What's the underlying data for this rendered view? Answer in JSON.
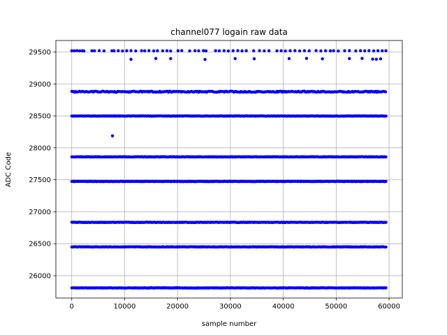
{
  "chart_data": {
    "type": "scatter",
    "title": "channel077 logain raw data",
    "xlabel": "sample number",
    "ylabel": "ADC Code",
    "xlim": [
      -3000,
      62500
    ],
    "ylim": [
      25650,
      29680
    ],
    "xticks": [
      0,
      10000,
      20000,
      30000,
      40000,
      50000,
      60000
    ],
    "yticks": [
      26000,
      26500,
      27000,
      27500,
      28000,
      28500,
      29000,
      29500
    ],
    "grid": true,
    "marker_color": "#0000ff",
    "sample_range": [
      0,
      59500
    ],
    "levels": [
      {
        "value": 25808,
        "pattern": "dense"
      },
      {
        "value": 26450,
        "pattern": "dense"
      },
      {
        "value": 26834,
        "pattern": "dense"
      },
      {
        "value": 27474,
        "pattern": "dense"
      },
      {
        "value": 27859,
        "pattern": "dense"
      },
      {
        "value": 28498,
        "pattern": "dense"
      },
      {
        "value": 28878,
        "pattern": "clustered"
      },
      {
        "value": 29517,
        "pattern": "sparse"
      }
    ],
    "sparse_points": [
      {
        "x": 0,
        "y": 29520
      },
      {
        "x": 500,
        "y": 29518
      },
      {
        "x": 1000,
        "y": 29521
      },
      {
        "x": 1500,
        "y": 29517
      },
      {
        "x": 2000,
        "y": 29519
      },
      {
        "x": 2300,
        "y": 29516
      },
      {
        "x": 3800,
        "y": 29520
      },
      {
        "x": 4300,
        "y": 29518
      },
      {
        "x": 5200,
        "y": 29521
      },
      {
        "x": 6100,
        "y": 29517
      },
      {
        "x": 7600,
        "y": 29519
      },
      {
        "x": 8000,
        "y": 29518
      },
      {
        "x": 8800,
        "y": 29520
      },
      {
        "x": 9600,
        "y": 29516
      },
      {
        "x": 10400,
        "y": 29519
      },
      {
        "x": 11200,
        "y": 29521
      },
      {
        "x": 12100,
        "y": 29517
      },
      {
        "x": 13200,
        "y": 29520
      },
      {
        "x": 13800,
        "y": 29518
      },
      {
        "x": 14600,
        "y": 29521
      },
      {
        "x": 15500,
        "y": 29517
      },
      {
        "x": 16200,
        "y": 29519
      },
      {
        "x": 17200,
        "y": 29518
      },
      {
        "x": 18000,
        "y": 29520
      },
      {
        "x": 18700,
        "y": 29516
      },
      {
        "x": 20100,
        "y": 29519
      },
      {
        "x": 20800,
        "y": 29521
      },
      {
        "x": 22300,
        "y": 29517
      },
      {
        "x": 23300,
        "y": 29520
      },
      {
        "x": 24000,
        "y": 29518
      },
      {
        "x": 24900,
        "y": 29521
      },
      {
        "x": 25400,
        "y": 29517
      },
      {
        "x": 27200,
        "y": 29519
      },
      {
        "x": 27900,
        "y": 29518
      },
      {
        "x": 28800,
        "y": 29520
      },
      {
        "x": 29600,
        "y": 29516
      },
      {
        "x": 30500,
        "y": 29519
      },
      {
        "x": 31400,
        "y": 29521
      },
      {
        "x": 32200,
        "y": 29517
      },
      {
        "x": 33000,
        "y": 29520
      },
      {
        "x": 34400,
        "y": 29518
      },
      {
        "x": 35500,
        "y": 29521
      },
      {
        "x": 36400,
        "y": 29517
      },
      {
        "x": 37300,
        "y": 29519
      },
      {
        "x": 38800,
        "y": 29518
      },
      {
        "x": 39600,
        "y": 29520
      },
      {
        "x": 40400,
        "y": 29516
      },
      {
        "x": 41300,
        "y": 29519
      },
      {
        "x": 42200,
        "y": 29521
      },
      {
        "x": 43100,
        "y": 29517
      },
      {
        "x": 44000,
        "y": 29520
      },
      {
        "x": 44900,
        "y": 29518
      },
      {
        "x": 46200,
        "y": 29521
      },
      {
        "x": 47100,
        "y": 29517
      },
      {
        "x": 48000,
        "y": 29519
      },
      {
        "x": 48900,
        "y": 29518
      },
      {
        "x": 49500,
        "y": 29520
      },
      {
        "x": 50400,
        "y": 29516
      },
      {
        "x": 51600,
        "y": 29519
      },
      {
        "x": 52500,
        "y": 29521
      },
      {
        "x": 53700,
        "y": 29517
      },
      {
        "x": 54600,
        "y": 29520
      },
      {
        "x": 55400,
        "y": 29518
      },
      {
        "x": 56200,
        "y": 29521
      },
      {
        "x": 57100,
        "y": 29517
      },
      {
        "x": 57900,
        "y": 29519
      },
      {
        "x": 58700,
        "y": 29518
      },
      {
        "x": 59400,
        "y": 29520
      },
      {
        "x": 11200,
        "y": 29385
      },
      {
        "x": 15900,
        "y": 29398
      },
      {
        "x": 18700,
        "y": 29396
      },
      {
        "x": 25200,
        "y": 29383
      },
      {
        "x": 30900,
        "y": 29397
      },
      {
        "x": 34500,
        "y": 29394
      },
      {
        "x": 41100,
        "y": 29396
      },
      {
        "x": 44400,
        "y": 29400
      },
      {
        "x": 47400,
        "y": 29393
      },
      {
        "x": 52500,
        "y": 29397
      },
      {
        "x": 54900,
        "y": 29399
      },
      {
        "x": 56900,
        "y": 29388
      },
      {
        "x": 57600,
        "y": 29386
      },
      {
        "x": 58400,
        "y": 29393
      },
      {
        "x": 7700,
        "y": 28187
      }
    ]
  }
}
